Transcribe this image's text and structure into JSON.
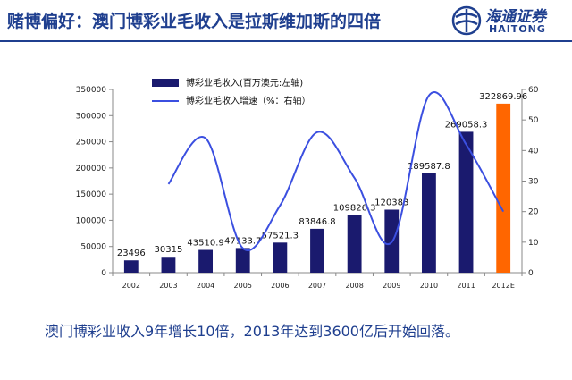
{
  "header": {
    "title": "赌博偏好：澳门博彩业毛收入是拉斯维加斯的四倍",
    "logo_cn": "海通证券",
    "logo_en": "HAITONG"
  },
  "colors": {
    "brand": "#1f3f8f",
    "bar": "#1a1a6e",
    "bar_forecast": "#ff6600",
    "line": "#3b4fe0"
  },
  "chart_data": {
    "type": "bar+line",
    "categories": [
      "2002",
      "2003",
      "2004",
      "2005",
      "2006",
      "2007",
      "2008",
      "2009",
      "2010",
      "2011",
      "2012E"
    ],
    "series": [
      {
        "name": "博彩业毛收入(百万澳元:左轴)",
        "axis": "left",
        "type": "bar",
        "values": [
          23496,
          30315,
          43510.9,
          47133.7,
          57521.3,
          83846.8,
          109826.3,
          120383,
          189587.8,
          269058.3,
          322869.96
        ],
        "labels": [
          "23496",
          "30315",
          "43510.9",
          "47133.7",
          "57521.3",
          "83846.8",
          "109826.3",
          "120383",
          "189587.8",
          "269058.3",
          "322869.96"
        ]
      },
      {
        "name": "博彩业毛收入增速（%：右轴）",
        "axis": "right",
        "type": "line",
        "values": [
          null,
          29,
          44,
          8,
          22,
          46,
          31,
          10,
          58,
          42,
          20
        ]
      }
    ],
    "left_axis": {
      "min": 0,
      "max": 350000,
      "ticks": [
        "0",
        "50000",
        "100000",
        "150000",
        "200000",
        "250000",
        "300000",
        "350000"
      ]
    },
    "right_axis": {
      "min": 0,
      "max": 60,
      "ticks": [
        "0",
        "10",
        "20",
        "30",
        "40",
        "50",
        "60"
      ]
    },
    "legend_position": "top-left"
  },
  "footer": {
    "text": "澳门博彩业收入9年增长10倍，2013年达到3600亿后开始回落。"
  }
}
